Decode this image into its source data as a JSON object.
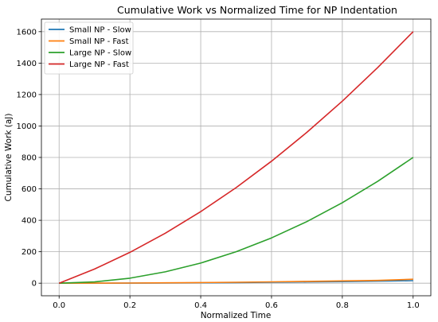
{
  "chart_data": {
    "type": "line",
    "title": "Cumulative Work vs Normalized Time for NP Indentation",
    "xlabel": "Normalized Time",
    "ylabel": "Cumulative Work (aJ)",
    "xlim": [
      -0.05,
      1.05
    ],
    "ylim": [
      -80,
      1680
    ],
    "xticks": [
      0.0,
      0.2,
      0.4,
      0.6,
      0.8,
      1.0
    ],
    "xtick_labels": [
      "0.0",
      "0.2",
      "0.4",
      "0.6",
      "0.8",
      "1.0"
    ],
    "yticks": [
      0,
      200,
      400,
      600,
      800,
      1000,
      1200,
      1400,
      1600
    ],
    "ytick_labels": [
      "0",
      "200",
      "400",
      "600",
      "800",
      "1000",
      "1200",
      "1400",
      "1600"
    ],
    "grid": true,
    "legend_position": "top-left",
    "x": [
      0.0,
      0.1,
      0.2,
      0.3,
      0.4,
      0.5,
      0.6,
      0.7,
      0.8,
      0.9,
      1.0
    ],
    "series": [
      {
        "name": "Small NP - Slow",
        "color": "#1f77b4",
        "values": [
          0,
          0.1,
          0.6,
          1.4,
          2.6,
          4.1,
          5.8,
          7.8,
          10.2,
          12.9,
          16
        ]
      },
      {
        "name": "Small NP - Fast",
        "color": "#ff7f0e",
        "values": [
          0,
          0.2,
          1.0,
          2.2,
          3.9,
          6.1,
          8.6,
          11.3,
          14.4,
          17.8,
          25
        ]
      },
      {
        "name": "Large NP - Slow",
        "color": "#2ca02c",
        "values": [
          0,
          8,
          32,
          72,
          128,
          200,
          288,
          392,
          512,
          648,
          800
        ]
      },
      {
        "name": "Large NP - Fast",
        "color": "#d62728",
        "values": [
          0,
          90,
          196,
          318,
          455,
          608,
          776,
          960,
          1158,
          1372,
          1600
        ]
      }
    ]
  }
}
